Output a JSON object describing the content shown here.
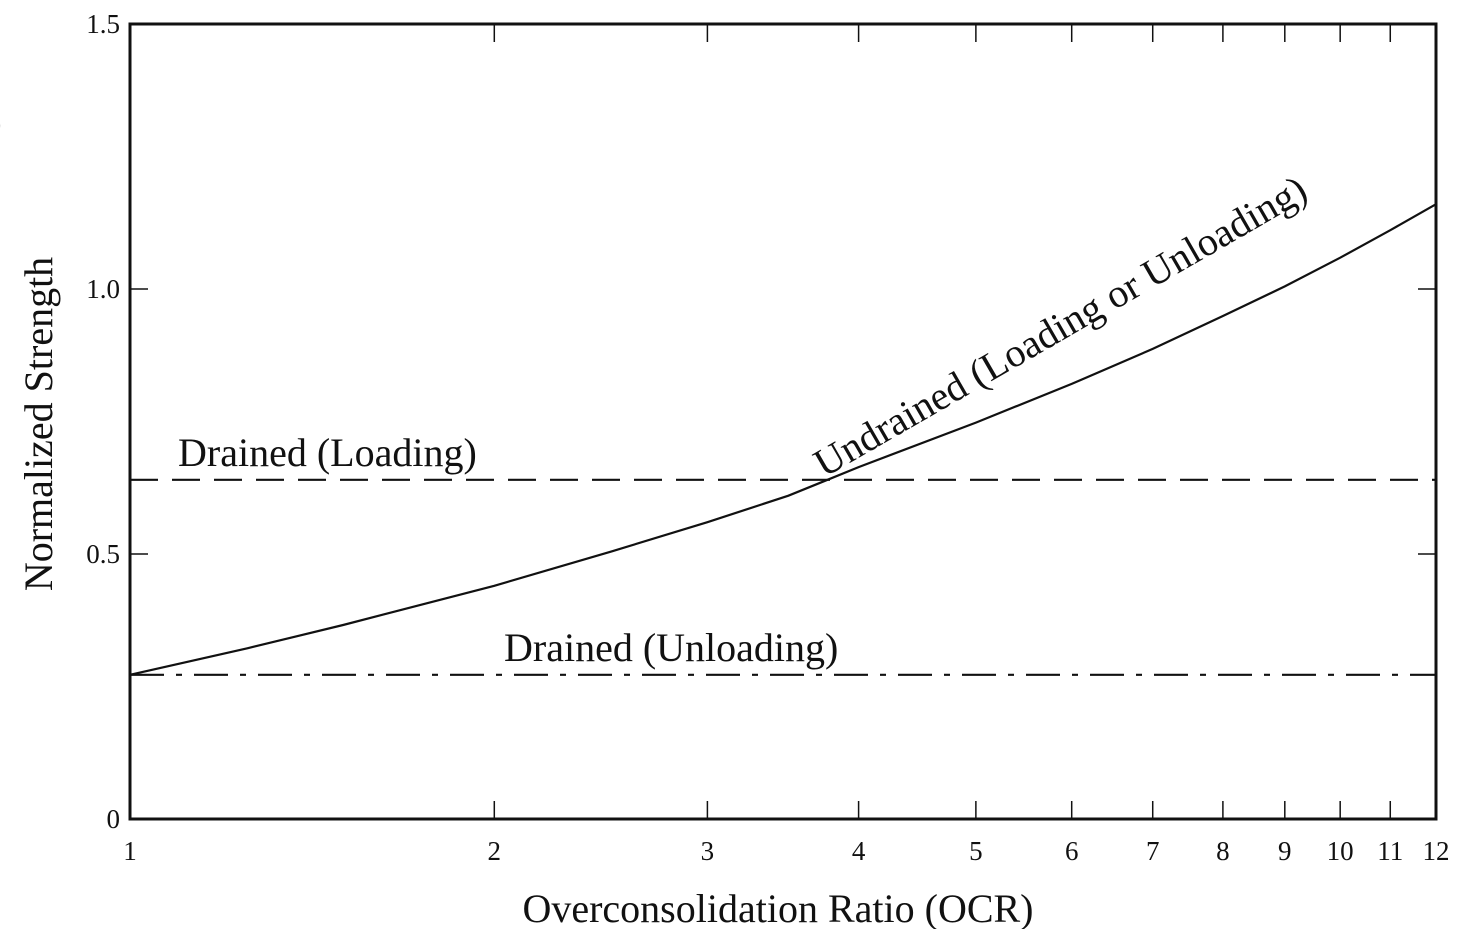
{
  "page": {
    "edge_fragment": ")"
  },
  "chart_data": {
    "type": "line",
    "title": "",
    "xlabel": "Overconsolidation Ratio (OCR)",
    "ylabel": "Normalized Strength",
    "xscale": "log",
    "xlim": [
      1,
      12
    ],
    "ylim": [
      0,
      1.5
    ],
    "x_ticks": [
      1,
      2,
      3,
      4,
      5,
      6,
      7,
      8,
      9,
      10,
      11,
      12
    ],
    "x_tick_labels": [
      "1",
      "2",
      "3",
      "4",
      "5",
      "6",
      "7",
      "8",
      "9",
      "10",
      "11",
      "12"
    ],
    "y_ticks": [
      0,
      0.5,
      1.0,
      1.5
    ],
    "y_tick_labels": [
      "0",
      "0.5",
      "1.0",
      "1.5"
    ],
    "grid": false,
    "legend": "none",
    "series": [
      {
        "label": "Undrained (Loading or Unloading)",
        "style": "solid",
        "x": [
          1,
          1.25,
          1.5,
          2,
          2.5,
          3,
          3.5,
          3.77,
          4,
          5,
          6,
          7,
          8,
          9,
          10,
          11,
          12
        ],
        "y": [
          0.272,
          0.322,
          0.366,
          0.44,
          0.505,
          0.56,
          0.61,
          0.64,
          0.664,
          0.748,
          0.821,
          0.887,
          0.949,
          1.005,
          1.059,
          1.111,
          1.16
        ]
      },
      {
        "label": "Drained (Loading)",
        "style": "dashed",
        "x": [
          1,
          12
        ],
        "y": [
          0.64,
          0.64
        ]
      },
      {
        "label": "Drained (Unloading)",
        "style": "dashdot",
        "x": [
          1,
          12
        ],
        "y": [
          0.272,
          0.272
        ]
      }
    ]
  }
}
